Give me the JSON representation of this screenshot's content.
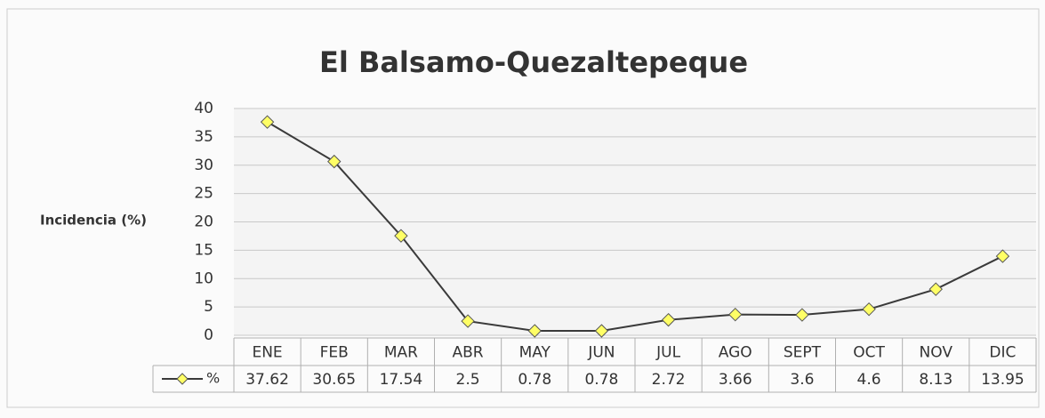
{
  "chart_data": {
    "type": "line",
    "title": "El Balsamo-Quezaltepeque",
    "y_label": "Incidencia (%)",
    "categories": [
      "ENE",
      "FEB",
      "MAR",
      "ABR",
      "MAY",
      "JUN",
      "JUL",
      "AGO",
      "SEPT",
      "OCT",
      "NOV",
      "DIC"
    ],
    "series": [
      {
        "name": "%",
        "color": "#3a3a3a",
        "marker_color": "#ffff66",
        "values": [
          37.62,
          30.65,
          17.54,
          2.5,
          0.78,
          0.78,
          2.72,
          3.66,
          3.6,
          4.6,
          8.13,
          13.95
        ]
      }
    ],
    "ylim": [
      0,
      40
    ],
    "yticks": [
      0,
      5,
      10,
      15,
      20,
      25,
      30,
      35,
      40
    ],
    "grid": true,
    "data_table": true
  }
}
